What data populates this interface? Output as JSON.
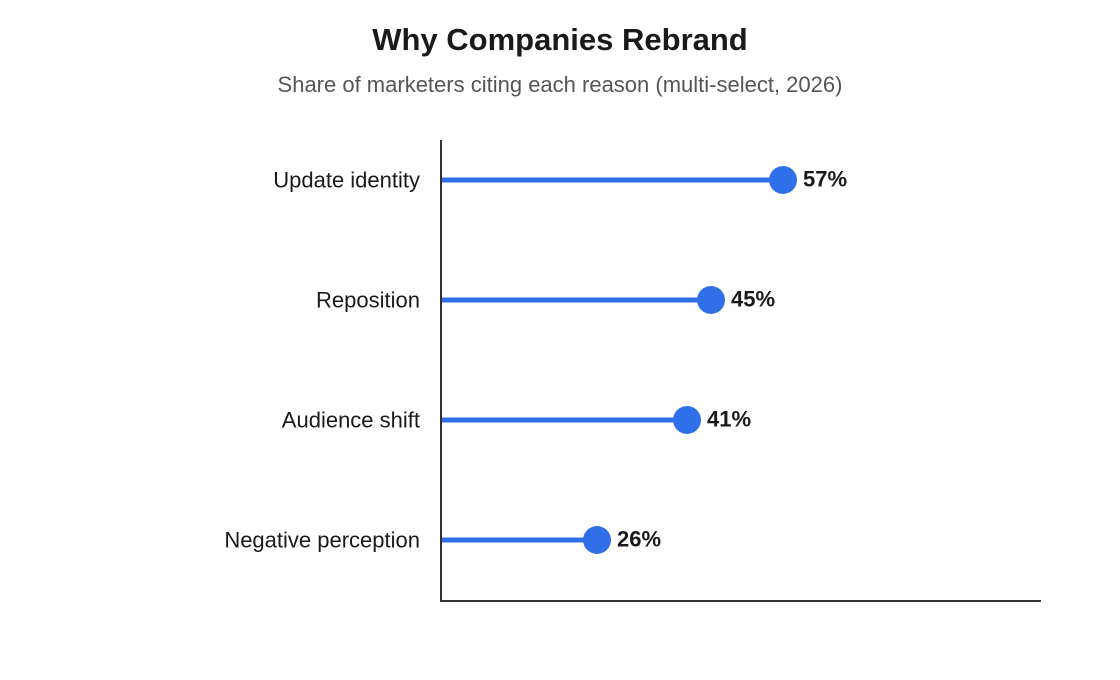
{
  "chart_data": {
    "type": "lollipop",
    "title": "Why Companies Rebrand",
    "subtitle": "Share of marketers citing each reason (multi-select, 2026)",
    "categories": [
      "Update identity",
      "Reposition",
      "Audience shift",
      "Negative perception"
    ],
    "values": [
      57,
      45,
      41,
      26
    ],
    "value_labels": [
      "57%",
      "45%",
      "41%",
      "26%"
    ],
    "xlim": [
      0,
      100
    ],
    "grid": false,
    "colors": {
      "series": "#2f6fe8",
      "axis": "#333333"
    }
  }
}
